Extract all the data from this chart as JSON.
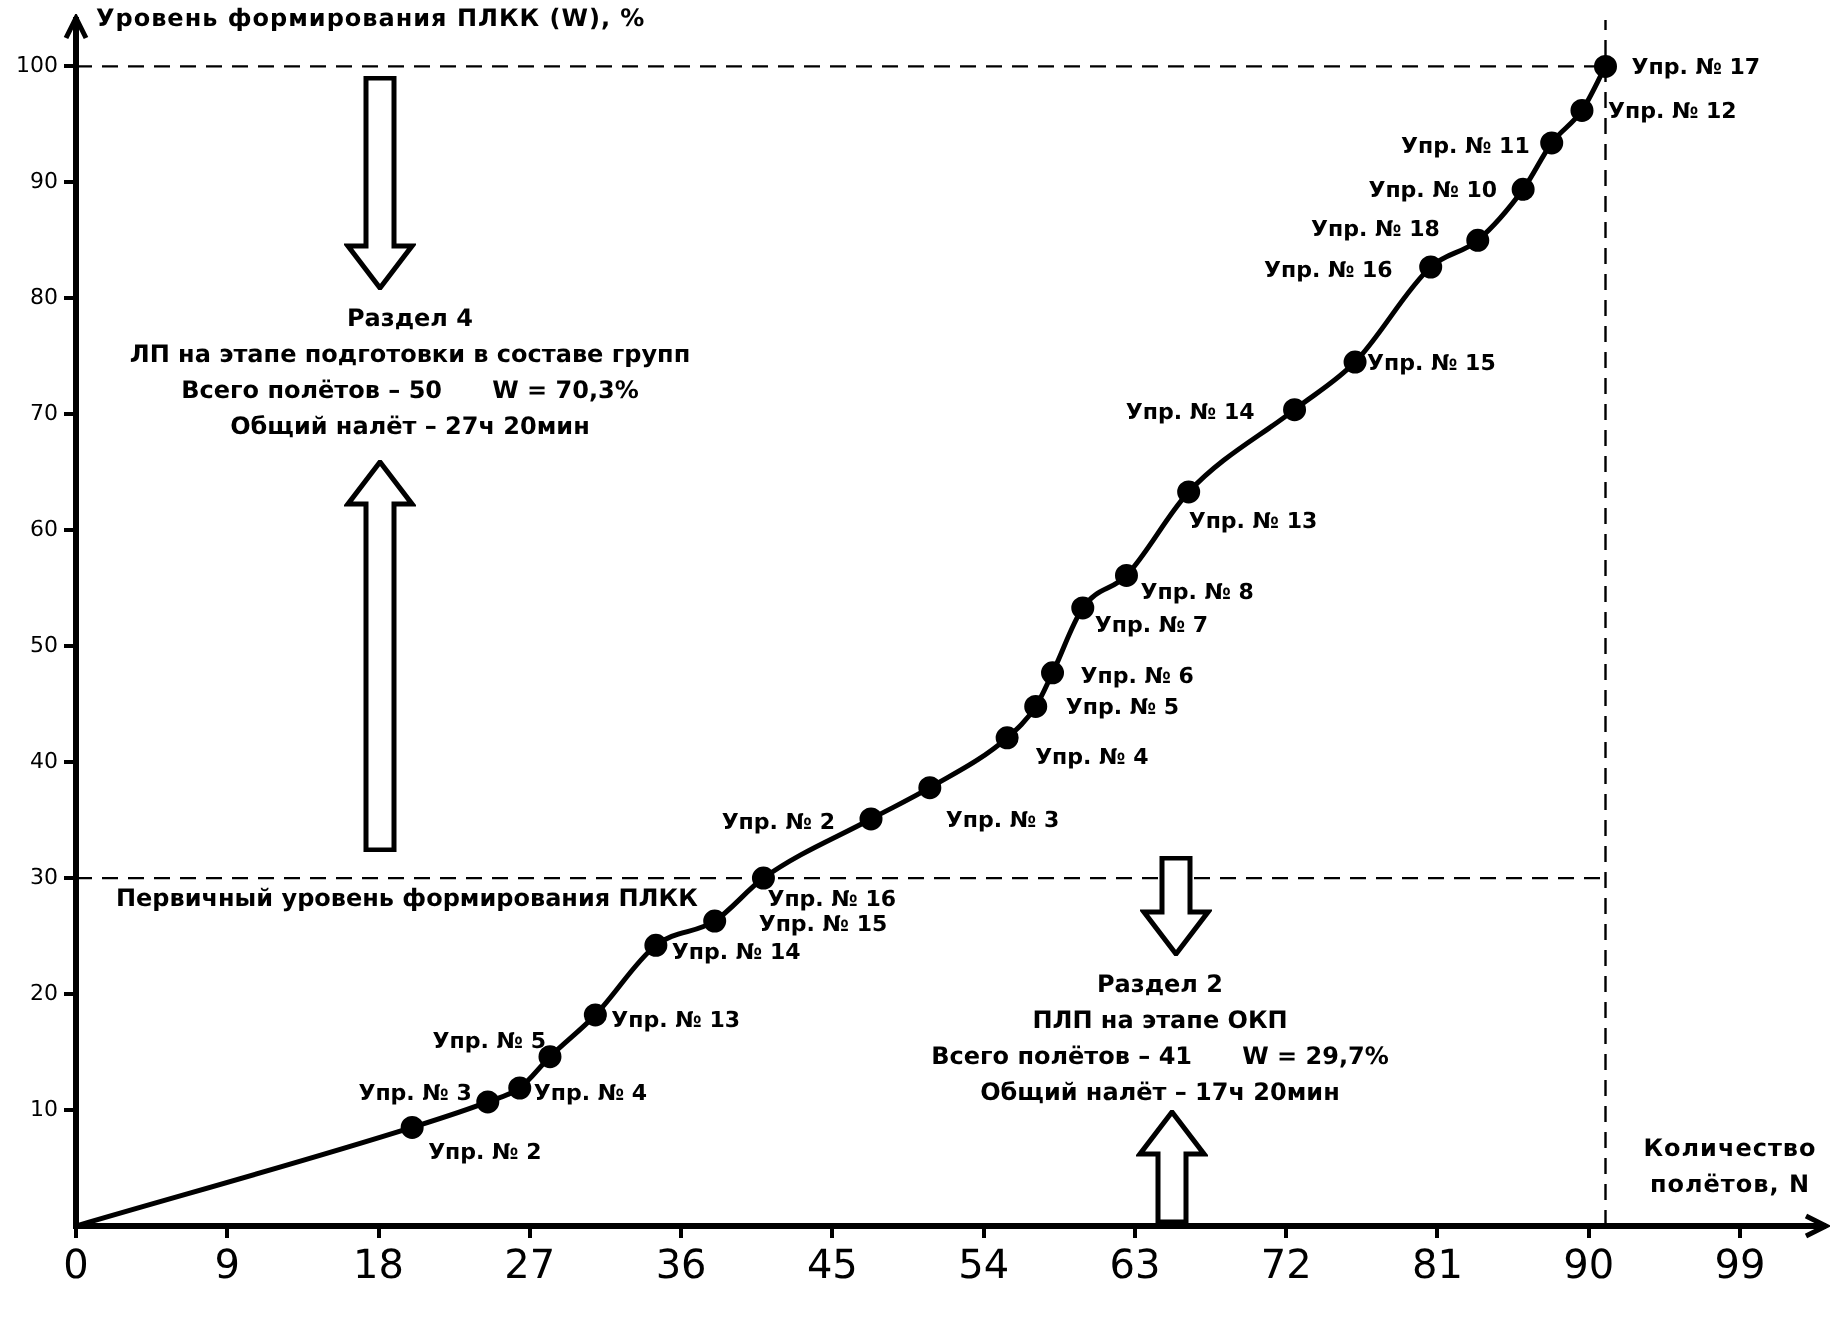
{
  "chart_data": {
    "type": "line",
    "xlabel": "Количество полётов, N",
    "ylabel": "Уровень формирования ПЛКК (W), %",
    "x": [
      0,
      20.0,
      24.5,
      26.4,
      28.2,
      30.9,
      34.5,
      38.0,
      40.9,
      47.3,
      50.8,
      55.4,
      57.1,
      58.1,
      59.9,
      62.5,
      66.2,
      72.5,
      76.1,
      80.6,
      83.4,
      86.1,
      87.8,
      89.6,
      91
    ],
    "series": [
      {
        "color": "#000000",
        "values": [
          0,
          8.5,
          10.7,
          11.9,
          14.6,
          18.2,
          24.2,
          26.3,
          30,
          35.1,
          37.8,
          42.1,
          44.8,
          47.7,
          53.3,
          56.1,
          63.3,
          70.4,
          74.5,
          82.7,
          85.0,
          89.4,
          93.4,
          96.2,
          100
        ]
      }
    ],
    "xlim": [
      0,
      104
    ],
    "xticks": [
      0,
      9,
      18,
      27,
      36,
      45,
      54,
      63,
      72,
      81,
      90,
      99
    ],
    "ylim": [
      0,
      104
    ],
    "yticks": [
      10,
      20,
      30,
      40,
      50,
      60,
      70,
      80,
      90,
      100
    ],
    "grid": false,
    "legend": false,
    "marker": "circle",
    "line_style": "solid",
    "ref_lines": [
      {
        "axis": "y",
        "value": 100,
        "label": null,
        "line_style": "dashed"
      },
      {
        "axis": "y",
        "value": 30,
        "label": "Первичный уровень формирования ПЛКК",
        "line_style": "dashed"
      },
      {
        "axis": "x",
        "value": 91,
        "label": null,
        "line_style": "dashed"
      }
    ],
    "annotations": [
      "Раздел 4",
      "ЛП на этапе подготовки в составе групп",
      "Всего полётов – 50      W = 70,3%",
      "Общий налёт – 27ч 20мин",
      "Раздел 2",
      "ПЛП на этапе ОКП",
      "Всего полётов – 41      W = 29,7%",
      "Общий налёт – 17ч 20мин",
      {
        "text": "Упр. № 2",
        "x": 20.0,
        "y": 8.5
      },
      {
        "text": "Упр. № 3",
        "x": 24.5,
        "y": 10.7
      },
      {
        "text": "Упр. № 4",
        "x": 26.4,
        "y": 11.9
      },
      {
        "text": "Упр. № 5",
        "x": 28.2,
        "y": 14.6
      },
      {
        "text": "Упр. № 13",
        "x": 30.9,
        "y": 18.2
      },
      {
        "text": "Упр. № 14",
        "x": 34.5,
        "y": 24.2
      },
      {
        "text": "Упр. № 15",
        "x": 38.0,
        "y": 26.3
      },
      {
        "text": "Упр. № 16",
        "x": 40.9,
        "y": 30
      },
      {
        "text": "Упр. № 2",
        "x": 47.3,
        "y": 35.1
      },
      {
        "text": "Упр. № 3",
        "x": 50.8,
        "y": 37.8
      },
      {
        "text": "Упр. № 4",
        "x": 55.4,
        "y": 42.1
      },
      {
        "text": "Упр. № 5",
        "x": 57.1,
        "y": 44.8
      },
      {
        "text": "Упр. № 6",
        "x": 58.1,
        "y": 47.7
      },
      {
        "text": "Упр. № 7",
        "x": 59.9,
        "y": 53.3
      },
      {
        "text": "Упр. № 8",
        "x": 62.5,
        "y": 56.1
      },
      {
        "text": "Упр. № 13",
        "x": 66.2,
        "y": 63.3
      },
      {
        "text": "Упр. № 14",
        "x": 72.5,
        "y": 70.4
      },
      {
        "text": "Упр. № 15",
        "x": 76.1,
        "y": 74.5
      },
      {
        "text": "Упр. № 16",
        "x": 80.6,
        "y": 82.7
      },
      {
        "text": "Упр. № 18",
        "x": 83.4,
        "y": 85.0
      },
      {
        "text": "Упр. № 10",
        "x": 86.1,
        "y": 89.4
      },
      {
        "text": "Упр. № 11",
        "x": 87.8,
        "y": 93.4
      },
      {
        "text": "Упр. № 12",
        "x": 89.6,
        "y": 96.2
      },
      {
        "text": "Упр. № 17",
        "x": 91,
        "y": 100
      }
    ]
  }
}
